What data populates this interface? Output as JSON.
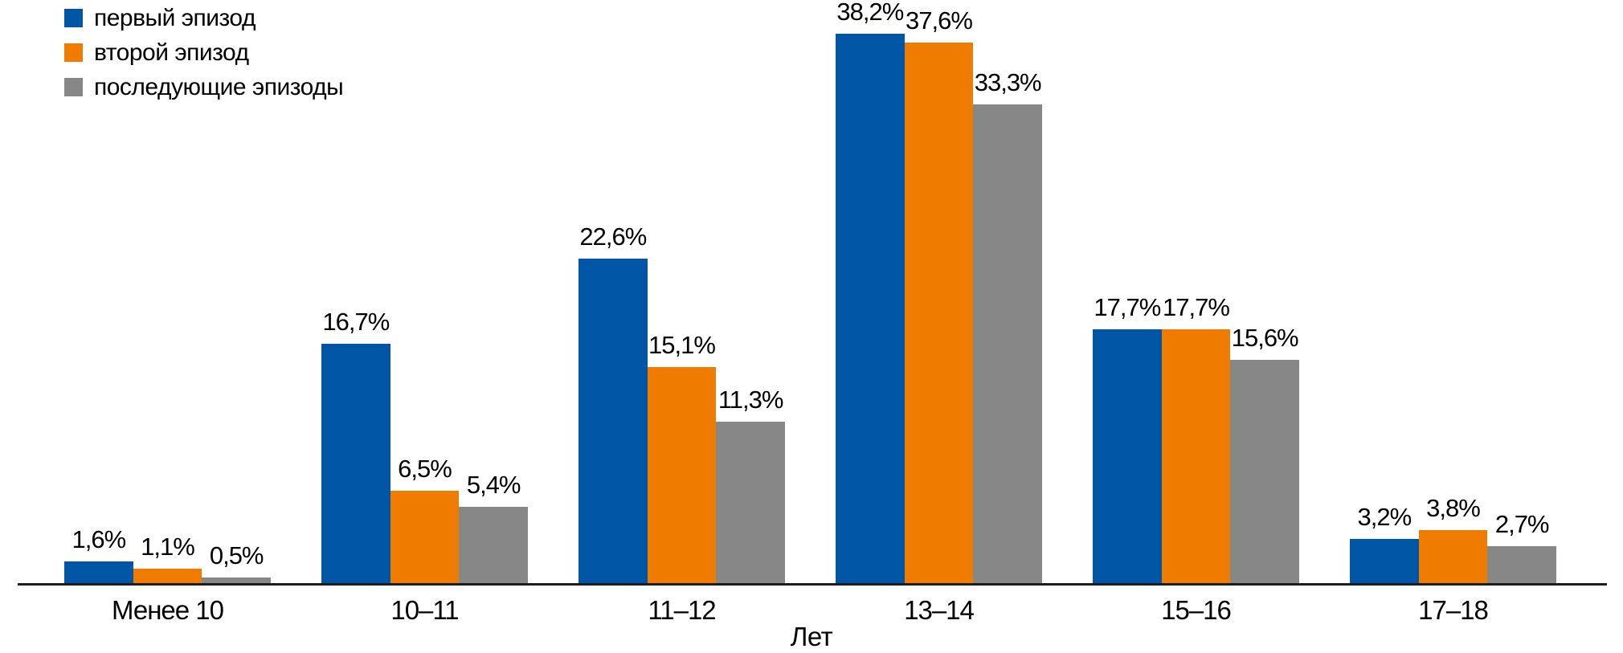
{
  "chart_data": {
    "type": "bar",
    "categories": [
      "Менее 10",
      "10–11",
      "11–12",
      "13–14",
      "15–16",
      "17–18"
    ],
    "series": [
      {
        "name": "первый эпизод",
        "color": "#0055A5",
        "values": [
          1.6,
          16.7,
          22.6,
          38.2,
          17.7,
          3.2
        ],
        "labels": [
          "1,6%",
          "16,7%",
          "22,6%",
          "38,2%",
          "17,7%",
          "3,2%"
        ]
      },
      {
        "name": "второй эпизод",
        "color": "#EF7C00",
        "values": [
          1.1,
          6.5,
          15.1,
          37.6,
          17.7,
          3.8
        ],
        "labels": [
          "1,1%",
          "6,5%",
          "15,1%",
          "37,6%",
          "17,7%",
          "3,8%"
        ]
      },
      {
        "name": "последующие эпизоды",
        "color": "#878787",
        "values": [
          0.5,
          5.4,
          11.3,
          33.3,
          15.6,
          2.7
        ],
        "labels": [
          "0,5%",
          "5,4%",
          "11,3%",
          "33,3%",
          "15,6%",
          "2,7%"
        ]
      }
    ],
    "xlabel": "Лет",
    "ylim": [
      0,
      40
    ],
    "value_suffix": "%",
    "legend_position": "top-left",
    "grid": "off"
  }
}
